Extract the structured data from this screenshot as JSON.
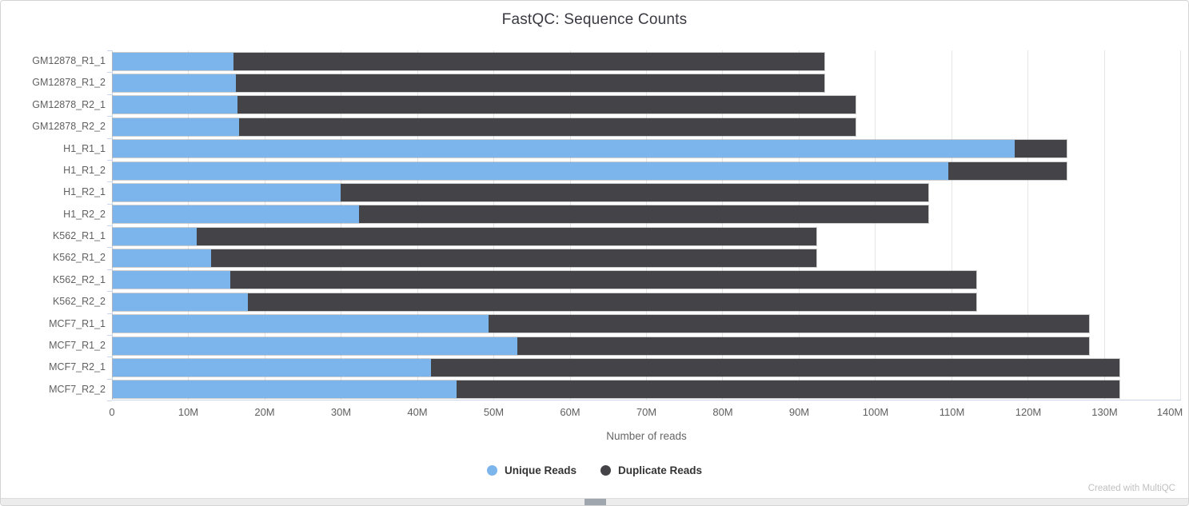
{
  "header": {
    "title": "FastQC: Sequence Counts"
  },
  "chart_data": {
    "type": "bar",
    "orientation": "horizontal",
    "stacked": true,
    "title": "FastQC: Sequence Counts",
    "xlabel": "Number of reads",
    "unit": "millions of reads",
    "xlim_millions": [
      0,
      140
    ],
    "x_tick_labels": [
      "0",
      "10M",
      "20M",
      "30M",
      "40M",
      "50M",
      "60M",
      "70M",
      "80M",
      "90M",
      "100M",
      "110M",
      "120M",
      "130M",
      "140M"
    ],
    "grid": true,
    "legend_position": "bottom",
    "categories": [
      "GM12878_R1_1",
      "GM12878_R1_2",
      "GM12878_R2_1",
      "GM12878_R2_2",
      "H1_R1_1",
      "H1_R1_2",
      "H1_R2_1",
      "H1_R2_2",
      "K562_R1_1",
      "K562_R1_2",
      "K562_R2_1",
      "K562_R2_2",
      "MCF7_R1_1",
      "MCF7_R1_2",
      "MCF7_R2_1",
      "MCF7_R2_2"
    ],
    "series": [
      {
        "name": "Unique Reads",
        "color": "#7cb5ec",
        "values_millions": [
          15.8,
          16.1,
          16.3,
          16.6,
          118.2,
          109.5,
          29.9,
          32.3,
          11.0,
          12.9,
          15.4,
          17.7,
          49.3,
          53.0,
          41.7,
          45.1
        ]
      },
      {
        "name": "Duplicate Reads",
        "color": "#434348",
        "values_millions": [
          77.5,
          77.2,
          81.1,
          80.8,
          6.8,
          15.5,
          77.0,
          74.6,
          81.2,
          79.3,
          97.8,
          95.5,
          78.7,
          75.0,
          90.2,
          86.8
        ]
      }
    ],
    "totals_millions": [
      93.3,
      93.3,
      97.4,
      97.4,
      125.0,
      125.0,
      106.9,
      106.9,
      92.2,
      92.2,
      113.2,
      113.2,
      128.0,
      128.0,
      131.9,
      131.9
    ]
  },
  "legend": {
    "items": [
      {
        "label": "Unique Reads",
        "color": "#7cb5ec"
      },
      {
        "label": "Duplicate Reads",
        "color": "#434348"
      }
    ]
  },
  "footer": {
    "credit": "Created with MultiQC"
  },
  "colors": {
    "unique": "#7cb5ec",
    "duplicate": "#434348",
    "gridline": "#e6e6e6",
    "axis_line": "#ccd6eb",
    "title_text": "#3a3a43",
    "tick_text": "#606060",
    "credit_text": "#c0c0c0"
  }
}
